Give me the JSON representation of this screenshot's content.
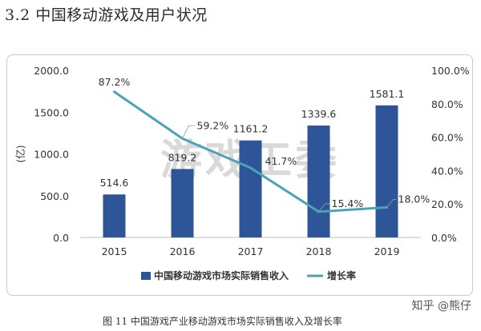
{
  "section_title": "3.2  中国移动游戏及用户状况",
  "caption": "图 11  中国游戏产业移动游戏市场实际销售收入及增长率",
  "attribution": "知乎 @熊仔",
  "watermark": "游戏工委",
  "colors": {
    "bar": "#2e5597",
    "line": "#4aa3b5",
    "axis_text": "#333333",
    "frame": "#c9c9c9"
  },
  "chart_data": {
    "type": "bar",
    "categories": [
      "2015",
      "2016",
      "2017",
      "2018",
      "2019"
    ],
    "series": [
      {
        "name": "中国移动游戏市场实际销售收入",
        "type": "bar",
        "axis": "left",
        "values": [
          514.6,
          819.2,
          1161.2,
          1339.6,
          1581.1
        ],
        "labels": [
          "514.6",
          "819.2",
          "1161.2",
          "1339.6",
          "1581.1"
        ]
      },
      {
        "name": "增长率",
        "type": "line",
        "axis": "right",
        "values": [
          87.2,
          59.2,
          41.7,
          15.4,
          18.0
        ],
        "labels": [
          "87.2%",
          "59.2%",
          "41.7%",
          "15.4%",
          "18.0%"
        ]
      }
    ],
    "ylabel": "(亿)",
    "ylim": [
      0,
      2000
    ],
    "yticks": [
      "2000.0",
      "1500.0",
      "1000.0",
      "500.0",
      "0.0"
    ],
    "y2lim": [
      0,
      100
    ],
    "y2ticks": [
      "100.0%",
      "80.0%",
      "60.0%",
      "40.0%",
      "20.0%",
      "0.0%"
    ],
    "grid": false,
    "legend_position": "bottom"
  }
}
